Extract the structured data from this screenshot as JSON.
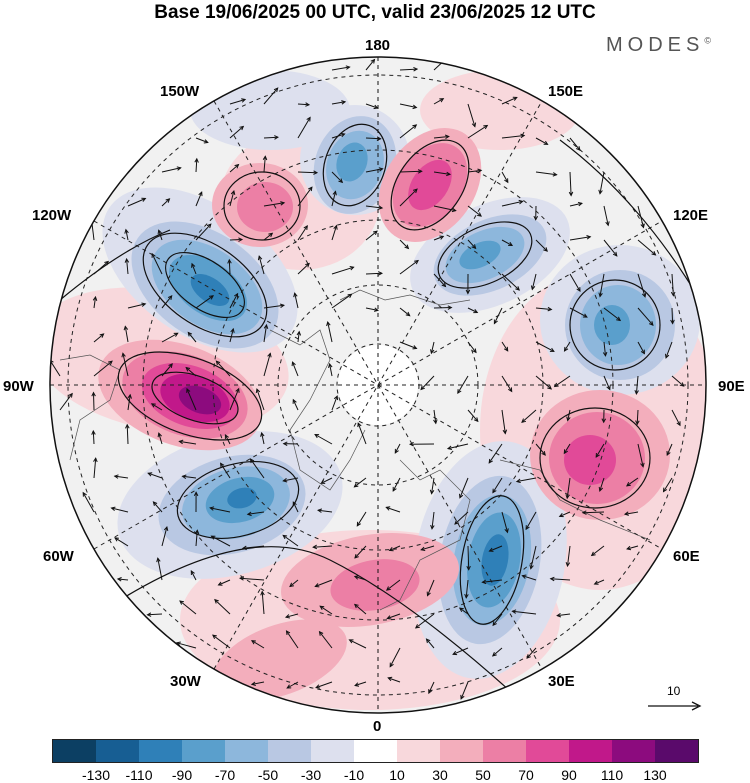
{
  "title": "Base 19/06/2025 00 UTC, valid 23/06/2025 12 UTC",
  "brand": "MODES",
  "brand_mark": "©",
  "longitude_labels": {
    "top": "180",
    "top_right": "150E",
    "right_upper": "120E",
    "right": "90E",
    "right_lower": "60E",
    "bottom_right": "30E",
    "bottom": "0",
    "bottom_left": "30W",
    "left_lower": "60W",
    "left": "90W",
    "left_upper": "120W",
    "top_left": "150W"
  },
  "vector_scale_label": "10",
  "colorbar": {
    "colors": [
      "#0c3f63",
      "#175e93",
      "#2f80b8",
      "#5a9fcc",
      "#8db7dc",
      "#b9c8e3",
      "#dde0ee",
      "#ffffff",
      "#f8d8dc",
      "#f3aebc",
      "#ec7fa5",
      "#e14a98",
      "#c1188a",
      "#8c0b7e",
      "#5a0a6b"
    ],
    "tick_labels": [
      "-130",
      "-110",
      "-90",
      "-70",
      "-50",
      "-30",
      "-10",
      "10",
      "30",
      "50",
      "70",
      "90",
      "110",
      "130"
    ]
  },
  "map": {
    "projection": "north polar stereographic",
    "anomaly_centers": [
      {
        "sign": "negative",
        "level": -70,
        "near": "150W-170W"
      },
      {
        "sign": "positive",
        "level": 70,
        "near": "160E-170E"
      },
      {
        "sign": "negative",
        "level": -60,
        "near": "130E"
      },
      {
        "sign": "negative",
        "level": -50,
        "near": "100E"
      },
      {
        "sign": "positive",
        "level": 80,
        "near": "75E"
      },
      {
        "sign": "negative",
        "level": -90,
        "near": "20E-30E"
      },
      {
        "sign": "positive",
        "level": 50,
        "near": "0-10E"
      },
      {
        "sign": "negative",
        "level": -70,
        "near": "60W"
      },
      {
        "sign": "positive",
        "level": 120,
        "near": "90W"
      },
      {
        "sign": "negative",
        "level": -80,
        "near": "120W"
      },
      {
        "sign": "positive",
        "level": 60,
        "near": "150W"
      }
    ]
  }
}
